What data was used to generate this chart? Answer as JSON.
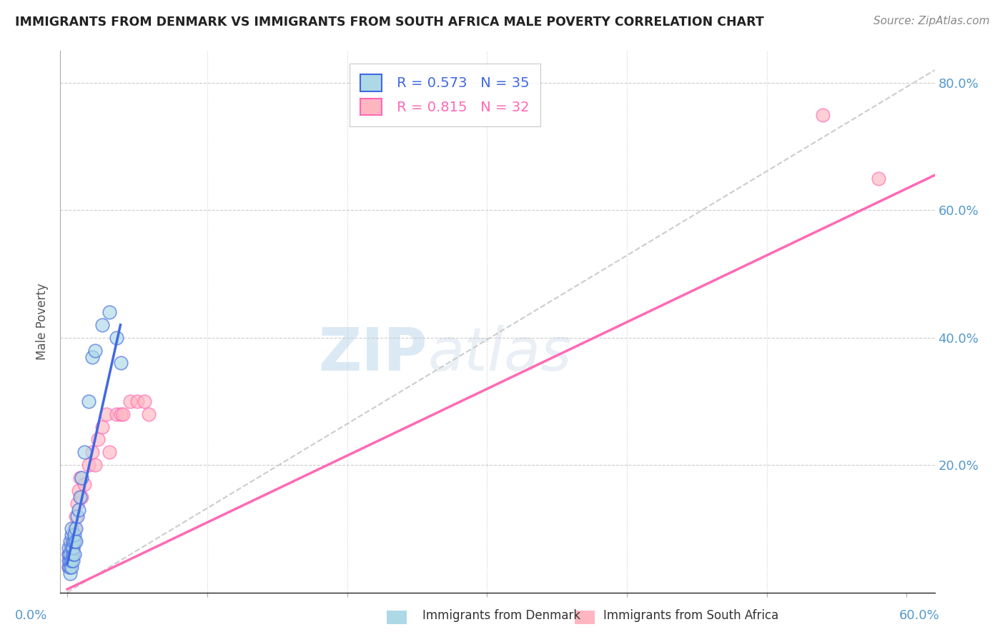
{
  "title": "IMMIGRANTS FROM DENMARK VS IMMIGRANTS FROM SOUTH AFRICA MALE POVERTY CORRELATION CHART",
  "source": "Source: ZipAtlas.com",
  "ylabel_label": "Male Poverty",
  "ylim": [
    0,
    0.85
  ],
  "xlim": [
    -0.005,
    0.62
  ],
  "yticks": [
    0.0,
    0.2,
    0.4,
    0.6,
    0.8
  ],
  "ytick_labels": [
    "",
    "20.0%",
    "40.0%",
    "60.0%",
    "80.0%"
  ],
  "denmark_color": "#ADD8E6",
  "south_africa_color": "#FFB6C1",
  "denmark_line_color": "#4169E1",
  "south_africa_line_color": "#FF69B4",
  "r_denmark": 0.573,
  "n_denmark": 35,
  "r_south_africa": 0.815,
  "n_south_africa": 32,
  "watermark_zip": "ZIP",
  "watermark_atlas": "atlas",
  "denmark_scatter_x": [
    0.001,
    0.001,
    0.001,
    0.001,
    0.002,
    0.002,
    0.002,
    0.002,
    0.002,
    0.003,
    0.003,
    0.003,
    0.003,
    0.003,
    0.004,
    0.004,
    0.004,
    0.004,
    0.005,
    0.005,
    0.005,
    0.006,
    0.006,
    0.007,
    0.008,
    0.009,
    0.01,
    0.012,
    0.015,
    0.018,
    0.02,
    0.025,
    0.03,
    0.035,
    0.038
  ],
  "denmark_scatter_y": [
    0.04,
    0.05,
    0.06,
    0.07,
    0.03,
    0.04,
    0.05,
    0.06,
    0.08,
    0.04,
    0.05,
    0.07,
    0.09,
    0.1,
    0.05,
    0.06,
    0.07,
    0.08,
    0.06,
    0.08,
    0.09,
    0.08,
    0.1,
    0.12,
    0.13,
    0.15,
    0.18,
    0.22,
    0.3,
    0.37,
    0.38,
    0.42,
    0.44,
    0.4,
    0.36
  ],
  "sa_scatter_x": [
    0.001,
    0.001,
    0.002,
    0.002,
    0.003,
    0.003,
    0.004,
    0.004,
    0.005,
    0.005,
    0.006,
    0.007,
    0.008,
    0.009,
    0.01,
    0.012,
    0.015,
    0.018,
    0.02,
    0.022,
    0.025,
    0.028,
    0.03,
    0.035,
    0.038,
    0.04,
    0.045,
    0.05,
    0.055,
    0.058,
    0.54,
    0.58
  ],
  "sa_scatter_y": [
    0.04,
    0.06,
    0.05,
    0.07,
    0.06,
    0.08,
    0.07,
    0.09,
    0.08,
    0.1,
    0.12,
    0.14,
    0.16,
    0.18,
    0.15,
    0.17,
    0.2,
    0.22,
    0.2,
    0.24,
    0.26,
    0.28,
    0.22,
    0.28,
    0.28,
    0.28,
    0.3,
    0.3,
    0.3,
    0.28,
    0.75,
    0.65
  ],
  "dk_line_x": [
    0.0,
    0.038
  ],
  "dk_line_y": [
    0.045,
    0.42
  ],
  "sa_line_x": [
    0.0,
    0.62
  ],
  "sa_line_y": [
    0.005,
    0.655
  ]
}
